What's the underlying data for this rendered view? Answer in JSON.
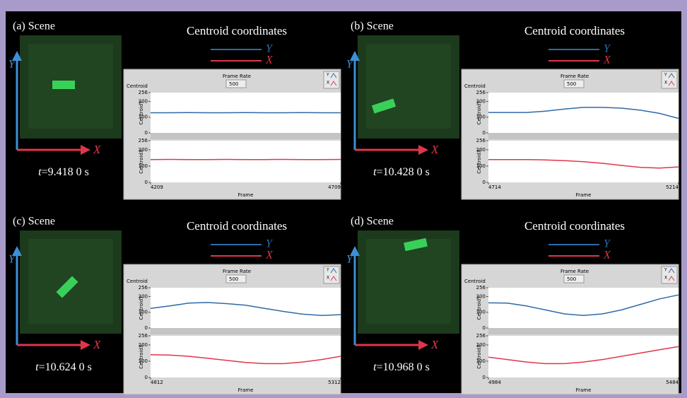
{
  "panels": [
    {
      "label": "(a) Scene",
      "time_var": "t",
      "time_value": "=9.418 0 s",
      "scene_axes": [
        "Y",
        "X"
      ],
      "title": "Centroid coordinates",
      "legend": [
        {
          "name": "Y",
          "color": "#2f6aa6"
        },
        {
          "name": "X",
          "color": "#e0364a"
        }
      ],
      "frame_rate_label": "Frame Rate",
      "frame_rate": "500",
      "chart_label": "Centroid",
      "plot_legend": [
        "Y",
        "X"
      ],
      "xlabel": "Frame",
      "xlim": [
        4209,
        4709
      ],
      "xticks": [
        4209,
        4709
      ],
      "plots": [
        {
          "ylabel": "CentroidY",
          "ylim": [
            0,
            256
          ],
          "yticks": [
            0,
            100,
            200,
            256
          ],
          "values": [
            128,
            128,
            129,
            128,
            128,
            129,
            128,
            128,
            129,
            128,
            128
          ]
        },
        {
          "ylabel": "CentroidX",
          "ylim": [
            0,
            256
          ],
          "yticks": [
            0,
            100,
            200,
            256
          ],
          "values": [
            140,
            141,
            140,
            140,
            141,
            140,
            140,
            141,
            140,
            140,
            141
          ]
        }
      ]
    },
    {
      "label": "(b) Scene",
      "time_var": "t",
      "time_value": "=10.428 0 s",
      "scene_axes": [
        "Y",
        "X"
      ],
      "title": "Centroid coordinates",
      "legend": [
        {
          "name": "Y",
          "color": "#2f6aa6"
        },
        {
          "name": "X",
          "color": "#e0364a"
        }
      ],
      "frame_rate_label": "Frame Rate",
      "frame_rate": "500",
      "chart_label": "Centroid",
      "plot_legend": [
        "Y",
        "X"
      ],
      "xlabel": "Frame",
      "xlim": [
        4714,
        5214
      ],
      "xticks": [
        4714,
        5214
      ],
      "plots": [
        {
          "ylabel": "CentroidY",
          "ylim": [
            0,
            256
          ],
          "yticks": [
            0,
            100,
            200,
            256
          ],
          "values": [
            130,
            130,
            130,
            138,
            152,
            162,
            162,
            157,
            144,
            124,
            92
          ]
        },
        {
          "ylabel": "CentroidX",
          "ylim": [
            0,
            256
          ],
          "yticks": [
            0,
            100,
            200,
            256
          ],
          "values": [
            140,
            140,
            140,
            138,
            133,
            127,
            117,
            104,
            92,
            88,
            95
          ]
        }
      ]
    },
    {
      "label": "(c) Scene",
      "time_var": "t",
      "time_value": "=10.624 0 s",
      "scene_axes": [
        "Y",
        "X"
      ],
      "title": "Centroid coordinates",
      "legend": [
        {
          "name": "Y",
          "color": "#2f6aa6"
        },
        {
          "name": "X",
          "color": "#e0364a"
        }
      ],
      "frame_rate_label": "Frame Rate",
      "frame_rate": "500",
      "chart_label": "Centroid",
      "plot_legend": [
        "Y",
        "X"
      ],
      "xlabel": "Frame",
      "xlim": [
        4812,
        5312
      ],
      "xticks": [
        4812,
        5312
      ],
      "plots": [
        {
          "ylabel": "CentroidY",
          "ylim": [
            0,
            256
          ],
          "yticks": [
            0,
            100,
            200,
            256
          ],
          "values": [
            125,
            140,
            158,
            162,
            155,
            145,
            125,
            105,
            88,
            80,
            85
          ]
        },
        {
          "ylabel": "CentroidX",
          "ylim": [
            0,
            256
          ],
          "yticks": [
            0,
            100,
            200,
            256
          ],
          "values": [
            140,
            138,
            130,
            118,
            105,
            92,
            85,
            85,
            95,
            110,
            130
          ]
        }
      ]
    },
    {
      "label": "(d) Scene",
      "time_var": "t",
      "time_value": "=10.968 0 s",
      "scene_axes": [
        "Y",
        "X"
      ],
      "title": "Centroid coordinates",
      "legend": [
        {
          "name": "Y",
          "color": "#2f6aa6"
        },
        {
          "name": "X",
          "color": "#e0364a"
        }
      ],
      "frame_rate_label": "Frame Rate",
      "frame_rate": "500",
      "chart_label": "Centroid",
      "plot_legend": [
        "Y",
        "X"
      ],
      "xlabel": "Frame",
      "xlim": [
        4984,
        5484
      ],
      "xticks": [
        4984,
        5484
      ],
      "plots": [
        {
          "ylabel": "CentroidY",
          "ylim": [
            0,
            256
          ],
          "yticks": [
            0,
            100,
            200,
            256
          ],
          "values": [
            160,
            158,
            140,
            115,
            90,
            80,
            90,
            115,
            150,
            185,
            210
          ]
        },
        {
          "ylabel": "CentroidX",
          "ylim": [
            0,
            256
          ],
          "yticks": [
            0,
            100,
            200,
            256
          ],
          "values": [
            125,
            110,
            95,
            85,
            85,
            95,
            110,
            130,
            150,
            170,
            190
          ]
        }
      ]
    }
  ]
}
